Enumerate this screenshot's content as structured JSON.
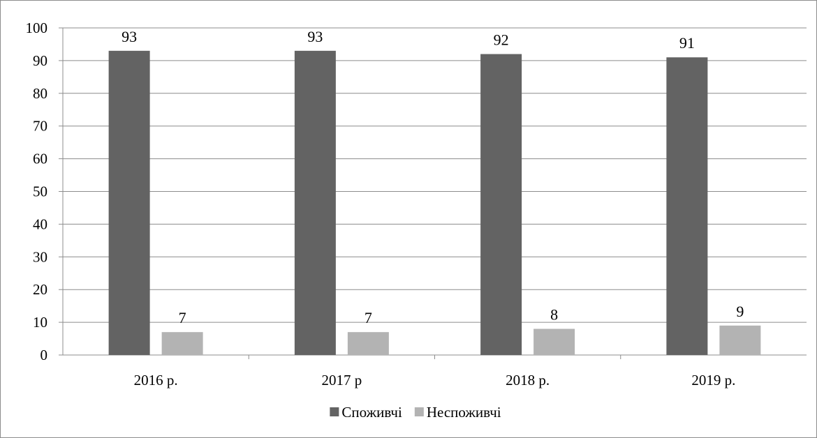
{
  "chart_data": {
    "type": "bar",
    "categories": [
      "2016 р.",
      "2017 р",
      "2018 р.",
      "2019 р."
    ],
    "series": [
      {
        "name": "Споживчі",
        "values": [
          93,
          93,
          92,
          91
        ],
        "color": "#636363"
      },
      {
        "name": "Неспоживчі",
        "values": [
          7,
          7,
          8,
          9
        ],
        "color": "#b3b3b3"
      }
    ],
    "ylim": [
      0,
      100
    ],
    "yticks": [
      0,
      10,
      20,
      30,
      40,
      50,
      60,
      70,
      80,
      90,
      100
    ],
    "grid": true,
    "data_labels": true,
    "legend_position": "bottom",
    "colors": {
      "gridline": "#8c8c8c",
      "axis": "#8c8c8c",
      "frame": "#8c8c8c"
    }
  }
}
